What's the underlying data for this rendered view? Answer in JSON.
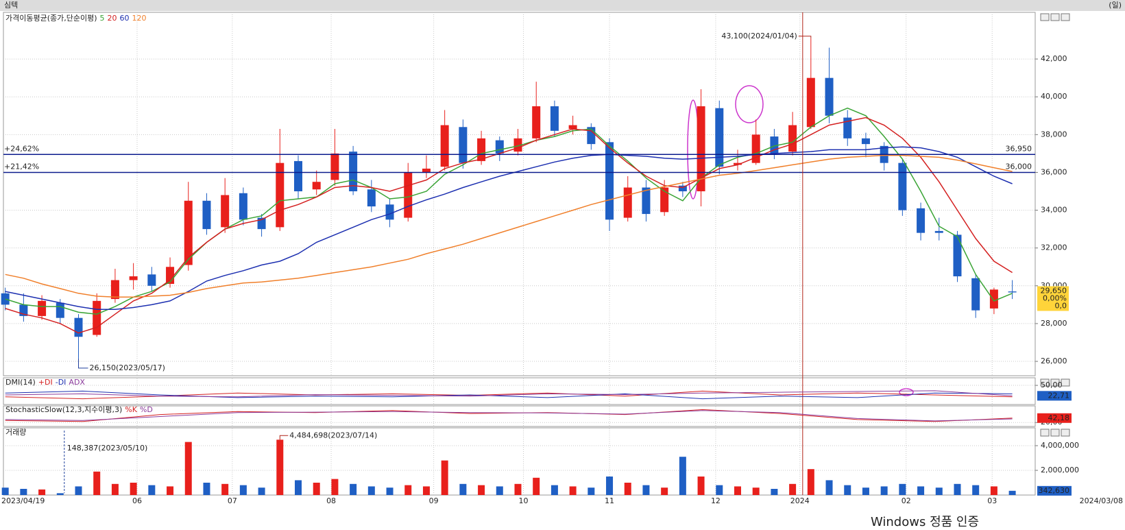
{
  "chart_data": [
    {
      "type": "candlestick",
      "title": "심텍",
      "period": "(일)",
      "indicator_title": "가격이동평균(종가,단순이평)",
      "x_start_label": "2023/04/19",
      "x_end_label": "2024/03/08",
      "watermark": "Windows 정품 인증",
      "xlim": [
        -0.1,
        56.25
      ],
      "xticks": [
        {
          "value": 7.2,
          "label": "06"
        },
        {
          "value": 12.4,
          "label": "07"
        },
        {
          "value": 17.8,
          "label": "08"
        },
        {
          "value": 23.4,
          "label": "09"
        },
        {
          "value": 28.3,
          "label": "10"
        },
        {
          "value": 33.0,
          "label": "11"
        },
        {
          "value": 38.8,
          "label": "12"
        },
        {
          "value": 43.4,
          "label": "2024"
        },
        {
          "value": 49.2,
          "label": "02"
        },
        {
          "value": 53.9,
          "label": "03"
        }
      ],
      "ylim": [
        25240,
        44470
      ],
      "yticks": [
        {
          "value": 26000,
          "label": "26,000"
        },
        {
          "value": 28000,
          "label": "28,000"
        },
        {
          "value": 30000,
          "label": "30,000"
        },
        {
          "value": 32000,
          "label": "32,000"
        },
        {
          "value": 34000,
          "label": "34,000"
        },
        {
          "value": 36000,
          "label": "36,000"
        },
        {
          "value": 38000,
          "label": "38,000"
        },
        {
          "value": 40000,
          "label": "40,000"
        },
        {
          "value": 42000,
          "label": "42,000"
        }
      ],
      "grid": true,
      "up_color": "#e8201c",
      "down_color": "#1f5fc4",
      "hline_color": "#0a1a8c",
      "note_color": "#b02418",
      "low_note_color": "#1f3f9c",
      "last_color": "#ffd43a",
      "open": [
        29600,
        29000,
        28400,
        29100,
        28300,
        27400,
        29300,
        30300,
        30600,
        30100,
        31100,
        34500,
        33100,
        34900,
        33600,
        33100,
        36600,
        35100,
        35600,
        37100,
        35100,
        34300,
        33600,
        36000,
        36300,
        38400,
        36600,
        37700,
        37100,
        37800,
        39500,
        38300,
        38400,
        37600,
        33600,
        35200,
        33900,
        35300,
        35000,
        39400,
        36400,
        36500,
        37900,
        37100,
        38400,
        41000,
        38900,
        37800,
        37400,
        36500,
        34100,
        32900,
        32700,
        30400,
        28800,
        29700
      ],
      "high": [
        29900,
        29600,
        29500,
        29300,
        28500,
        29600,
        30900,
        31200,
        31000,
        31500,
        35500,
        34900,
        35700,
        35200,
        33800,
        38300,
        36900,
        36100,
        38300,
        37400,
        35600,
        34600,
        36500,
        36900,
        39300,
        38800,
        38200,
        37900,
        38300,
        40800,
        39800,
        39000,
        38600,
        37800,
        35800,
        35600,
        35600,
        35500,
        40400,
        39800,
        37200,
        38800,
        38300,
        39200,
        43100,
        42600,
        39300,
        38100,
        37600,
        36700,
        34400,
        33600,
        32900,
        30600,
        29900,
        30300
      ],
      "low": [
        28700,
        28100,
        28200,
        28000,
        26150,
        27300,
        29100,
        29800,
        29700,
        29900,
        30800,
        32700,
        32800,
        33200,
        32600,
        32900,
        34600,
        34800,
        35300,
        34800,
        33900,
        33100,
        33400,
        35700,
        36100,
        36200,
        36400,
        36600,
        36900,
        37600,
        37900,
        38000,
        37200,
        32900,
        33400,
        33400,
        33700,
        34700,
        34200,
        35900,
        36100,
        36400,
        36700,
        36900,
        38300,
        38600,
        37400,
        36800,
        36100,
        33700,
        32400,
        32400,
        30200,
        28300,
        28500,
        29300
      ],
      "close": [
        29000,
        28400,
        29200,
        28300,
        27300,
        29200,
        30300,
        30500,
        30000,
        31000,
        34500,
        33000,
        34800,
        33500,
        33000,
        36500,
        35000,
        35500,
        37000,
        35000,
        34200,
        33500,
        36000,
        36200,
        38500,
        36500,
        37800,
        37000,
        37800,
        39500,
        38200,
        38500,
        37500,
        33500,
        35200,
        33800,
        35200,
        35000,
        39500,
        36300,
        36500,
        38000,
        37000,
        38500,
        41000,
        39000,
        37800,
        37500,
        36500,
        34000,
        32800,
        32800,
        30500,
        28700,
        29800,
        29650
      ],
      "series": [
        {
          "name": "5",
          "color": "#3aa435",
          "values": [
            29300,
            29000,
            28900,
            28900,
            28600,
            28500,
            28900,
            29400,
            29700,
            30200,
            31400,
            32300,
            33000,
            33500,
            33700,
            34500,
            34600,
            34700,
            35400,
            35600,
            35200,
            34600,
            34700,
            35000,
            35900,
            36400,
            37000,
            37200,
            37400,
            37700,
            37900,
            38200,
            38300,
            37400,
            36600,
            35700,
            35000,
            34500,
            35700,
            36400,
            36800,
            37000,
            37400,
            37600,
            38400,
            39000,
            39400,
            39000,
            37900,
            36700,
            35000,
            33150,
            32600,
            30600,
            29200,
            29600
          ]
        },
        {
          "name": "20",
          "color": "#d42020",
          "values": [
            28800,
            28500,
            28300,
            28000,
            27500,
            27800,
            28500,
            29200,
            29600,
            30300,
            31500,
            32300,
            33000,
            33300,
            33500,
            34000,
            34300,
            34700,
            35200,
            35300,
            35200,
            35000,
            35300,
            35600,
            36200,
            36500,
            36700,
            37000,
            37300,
            37700,
            38000,
            38300,
            38200,
            37300,
            36500,
            35800,
            35300,
            35200,
            35700,
            36200,
            36400,
            36800,
            37200,
            37500,
            38000,
            38500,
            38700,
            38900,
            38500,
            37800,
            36800,
            35500,
            34000,
            32500,
            31300,
            30700
          ]
        },
        {
          "name": "60",
          "color": "#1c2fb0",
          "values": [
            29700,
            29500,
            29300,
            29100,
            28900,
            28750,
            28750,
            28850,
            29000,
            29200,
            29700,
            30250,
            30550,
            30800,
            31100,
            31300,
            31700,
            32300,
            32700,
            33100,
            33500,
            33800,
            34200,
            34550,
            34850,
            35200,
            35500,
            35800,
            36050,
            36300,
            36550,
            36750,
            36900,
            36950,
            36900,
            36850,
            36750,
            36700,
            36750,
            36800,
            36850,
            36950,
            37000,
            37050,
            37100,
            37200,
            37200,
            37200,
            37300,
            37350,
            37300,
            37100,
            36800,
            36300,
            35800,
            35400
          ]
        },
        {
          "name": "120",
          "color": "#f07f2a",
          "values": [
            30600,
            30400,
            30100,
            29850,
            29600,
            29450,
            29400,
            29400,
            29450,
            29500,
            29650,
            29850,
            30000,
            30150,
            30200,
            30300,
            30400,
            30550,
            30700,
            30850,
            31000,
            31200,
            31400,
            31700,
            31950,
            32200,
            32500,
            32800,
            33100,
            33400,
            33700,
            34000,
            34300,
            34550,
            34800,
            35050,
            35250,
            35450,
            35650,
            35850,
            35950,
            36100,
            36250,
            36400,
            36550,
            36700,
            36800,
            36850,
            36900,
            36900,
            36850,
            36800,
            36650,
            36450,
            36250,
            36050
          ]
        }
      ],
      "hlines": [
        {
          "value": 36950,
          "label": "36,950",
          "pct_label": "+24,62%"
        },
        {
          "value": 36000,
          "label": "36,000",
          "pct_label": "+21,42%"
        }
      ],
      "high_note": {
        "value": 43100,
        "label": "43,100(2024/01/04)"
      },
      "low_note": {
        "value": 26150,
        "label": "26,150(2023/05/17)"
      },
      "last_price": {
        "value": 29650,
        "label": "29,650"
      },
      "change_label": "0,00%",
      "diff_label": "0,0"
    },
    {
      "type": "line",
      "title": "DMI(14)",
      "ylim": [
        0,
        68
      ],
      "yticks": [
        {
          "value": 50,
          "label": "50,00"
        }
      ],
      "grid": true,
      "last_color": "#1f5fc4",
      "series": [
        {
          "name": "+DI",
          "color": "#d42020",
          "values": [
            20,
            15,
            22,
            30,
            25,
            28,
            24,
            30,
            22,
            35,
            25,
            30,
            25,
            20
          ]
        },
        {
          "name": "-DI",
          "color": "#1c2fb0",
          "values": [
            30,
            35,
            25,
            18,
            22,
            20,
            25,
            18,
            28,
            15,
            22,
            18,
            30,
            28
          ]
        },
        {
          "name": "ADX",
          "color": "#8a3a9a",
          "values": [
            25,
            28,
            22,
            20,
            26,
            24,
            22,
            28,
            26,
            30,
            32,
            34,
            36,
            22.71
          ]
        }
      ],
      "last_label": {
        "value": 22.71,
        "label": "22,71"
      }
    },
    {
      "type": "line",
      "title": "StochasticSlow(12,3,지수이평,3)",
      "ylim": [
        0,
        100
      ],
      "yticks": [
        {
          "value": 20,
          "label": "20,00"
        }
      ],
      "grid": true,
      "last_color": "#e8201c",
      "series": [
        {
          "name": "%K",
          "color": "#d42020",
          "values": [
            30,
            25,
            60,
            75,
            70,
            80,
            65,
            70,
            60,
            85,
            65,
            35,
            25,
            42.18
          ]
        },
        {
          "name": "%D",
          "color": "#8a3a9a",
          "values": [
            35,
            30,
            50,
            70,
            72,
            75,
            70,
            68,
            62,
            80,
            70,
            40,
            28,
            38
          ]
        }
      ],
      "last_label": {
        "value": 42.18,
        "label": "42,18"
      }
    },
    {
      "type": "bar",
      "title": "거래량",
      "ylim": [
        0,
        5390000
      ],
      "yticks": [
        {
          "value": 2000000,
          "label": "2,000,000"
        },
        {
          "value": 4000000,
          "label": "4,000,000"
        }
      ],
      "grid": true,
      "last_color": "#1f5fc4",
      "values": [
        600000,
        500000,
        450000,
        148387,
        700000,
        1900000,
        900000,
        1000000,
        800000,
        700000,
        4300000,
        1000000,
        900000,
        800000,
        600000,
        4484698,
        1200000,
        1000000,
        1300000,
        900000,
        700000,
        600000,
        800000,
        700000,
        2800000,
        900000,
        800000,
        700000,
        900000,
        1400000,
        800000,
        700000,
        600000,
        1500000,
        1000000,
        800000,
        600000,
        3100000,
        1500000,
        800000,
        700000,
        600000,
        500000,
        900000,
        2100000,
        1200000,
        800000,
        600000,
        700000,
        900000,
        700000,
        600000,
        900000,
        800000,
        700000,
        342630
      ],
      "max_note": {
        "value": 4484698,
        "label": "4,484,698(2023/07/14)"
      },
      "min_note": {
        "value": 148387,
        "label": "148,387(2023/05/10)"
      },
      "last_label": {
        "value": 342630,
        "label": "342,630"
      }
    }
  ]
}
